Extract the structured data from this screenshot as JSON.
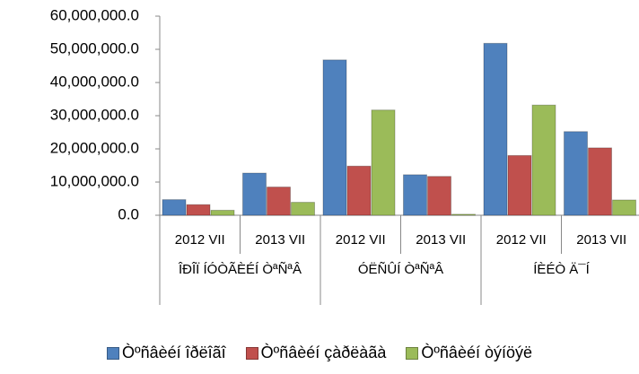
{
  "chart_data": {
    "type": "bar",
    "categories": [
      "2012 VII",
      "2013 VII",
      "2012 VII",
      "2013 VII",
      "2012 VII",
      "2013 VII"
    ],
    "group_labels": [
      "ÎÐÎÏ ÍÓÒÃÈÉÍ ÒªÑªÂ",
      "ÓËÑÛÍ ÒªÑªÂ",
      "ÍÈÉÒ Ä¯Í"
    ],
    "series": [
      {
        "name": "Òºñâèéí îðëîãî",
        "color": "#4f81bd",
        "values": [
          4700000,
          12700000,
          46800000,
          12200000,
          51800000,
          25200000
        ]
      },
      {
        "name": "Òºñâèéí çàðëàãà",
        "color": "#c0504d",
        "values": [
          3200000,
          8500000,
          14800000,
          11700000,
          18000000,
          20300000
        ]
      },
      {
        "name": "Òºñâèéí òýíöýë",
        "color": "#9bbb59",
        "values": [
          1500000,
          3900000,
          31700000,
          300000,
          33200000,
          4600000
        ]
      }
    ],
    "ylim": [
      0,
      60000000
    ],
    "yticks": [
      {
        "value": 0,
        "label": "0.0"
      },
      {
        "value": 10000000,
        "label": "10,000,000.0"
      },
      {
        "value": 20000000,
        "label": "20,000,000.0"
      },
      {
        "value": 30000000,
        "label": "30,000,000.0"
      },
      {
        "value": 40000000,
        "label": "40,000,000.0"
      },
      {
        "value": 50000000,
        "label": "50,000,000.0"
      },
      {
        "value": 60000000,
        "label": "60,000,000.0"
      }
    ],
    "legend": "bottom"
  }
}
